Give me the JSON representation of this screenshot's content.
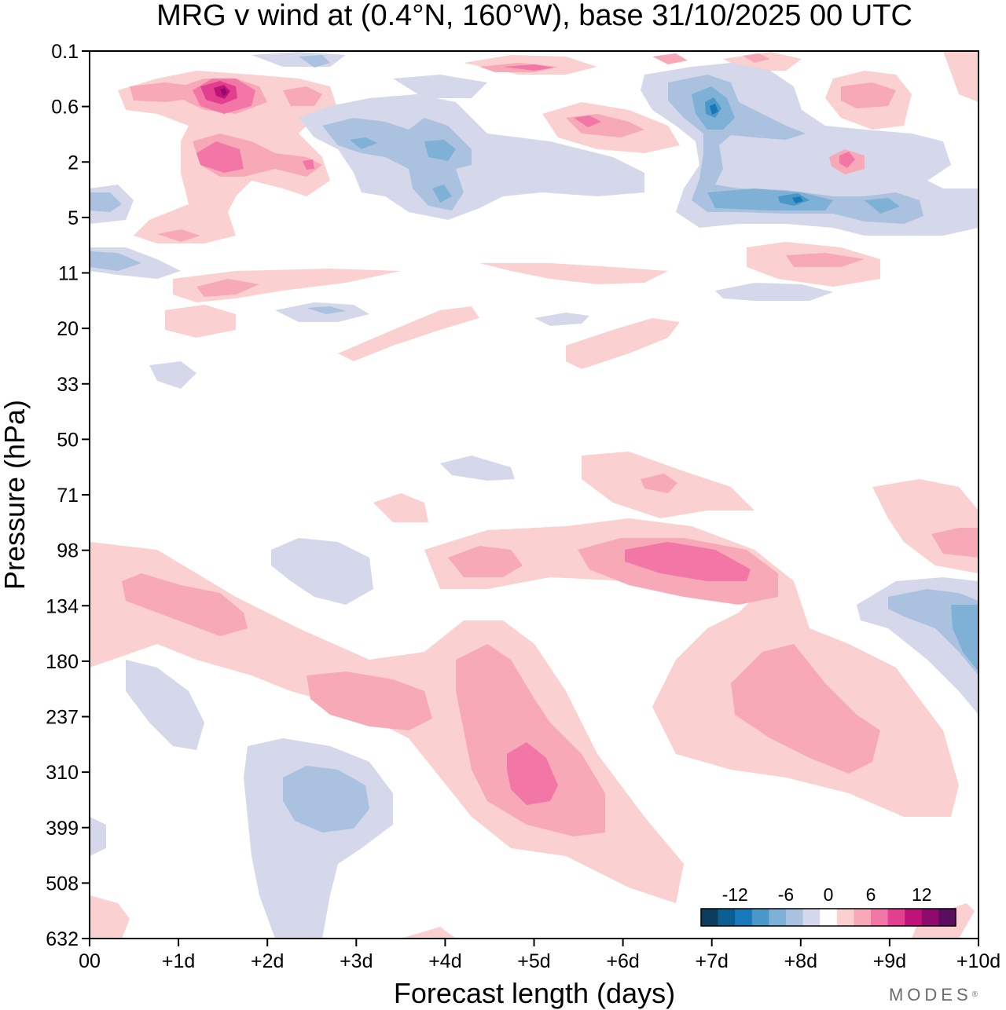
{
  "chart_data": {
    "type": "heatmap",
    "title": "MRG v wind at (0.4°N, 160°W),  base 31/10/2025  00 UTC",
    "xlabel": "Forecast length (days)",
    "ylabel": "Pressure (hPa)",
    "x_ticks": [
      "00",
      "+1d",
      "+2d",
      "+3d",
      "+4d",
      "+5d",
      "+6d",
      "+7d",
      "+8d",
      "+9d",
      "+10d"
    ],
    "y_ticks": [
      "0.1",
      "0.6",
      "2",
      "5",
      "11",
      "20",
      "33",
      "50",
      "71",
      "98",
      "134",
      "180",
      "237",
      "310",
      "399",
      "508",
      "632"
    ],
    "xlim_days": [
      0,
      10
    ],
    "y_axis_levels_hPa": [
      0.1,
      0.6,
      2,
      5,
      11,
      20,
      33,
      50,
      71,
      98,
      134,
      180,
      237,
      310,
      399,
      508,
      632
    ],
    "colorbar": {
      "labels": [
        "-12",
        "-6",
        "0",
        "6",
        "12"
      ],
      "label_values": [
        -12,
        -6,
        0,
        6,
        12
      ],
      "boundaries": [
        -16,
        -14,
        -12,
        -10,
        -8,
        -6,
        -4,
        -2,
        2,
        4,
        6,
        8,
        10,
        12,
        14,
        16
      ],
      "colors": [
        "#0d3d5e",
        "#0b5e91",
        "#1779ba",
        "#4b98c8",
        "#7fb0d5",
        "#aac2df",
        "#d4d8ea",
        "#ffffff",
        "#fbd0d0",
        "#f8a9b8",
        "#f276a6",
        "#e2408f",
        "#bf137a",
        "#8e0a6d",
        "#5a0d61"
      ]
    },
    "features": [
      {
        "kind": "positive",
        "day": 1.5,
        "hPa": 0.6,
        "value": 14
      },
      {
        "kind": "positive",
        "day": 1.5,
        "hPa": 2,
        "value": 7
      },
      {
        "kind": "positive",
        "day": 5.0,
        "hPa": 0.2,
        "value": 6
      },
      {
        "kind": "positive",
        "day": 5.5,
        "hPa": 1.2,
        "value": 6
      },
      {
        "kind": "positive",
        "day": 8.5,
        "hPa": 2,
        "value": 7
      },
      {
        "kind": "positive",
        "day": 0.9,
        "hPa": 134,
        "value": 5
      },
      {
        "kind": "positive",
        "day": 3.1,
        "hPa": 210,
        "value": 5
      },
      {
        "kind": "positive",
        "day": 5.0,
        "hPa": 310,
        "value": 8
      },
      {
        "kind": "positive",
        "day": 6.5,
        "hPa": 105,
        "value": 7
      },
      {
        "kind": "positive",
        "day": 8.7,
        "hPa": 237,
        "value": 5
      },
      {
        "kind": "negative",
        "day": 7.0,
        "hPa": 0.6,
        "value": -10
      },
      {
        "kind": "negative",
        "day": 8.0,
        "hPa": 5,
        "value": -10
      },
      {
        "kind": "negative",
        "day": 4.0,
        "hPa": 2,
        "value": -7
      },
      {
        "kind": "negative",
        "day": 2.5,
        "hPa": 330,
        "value": -5
      },
      {
        "kind": "negative",
        "day": 9.8,
        "hPa": 150,
        "value": -7
      }
    ]
  },
  "brand": "MODES"
}
